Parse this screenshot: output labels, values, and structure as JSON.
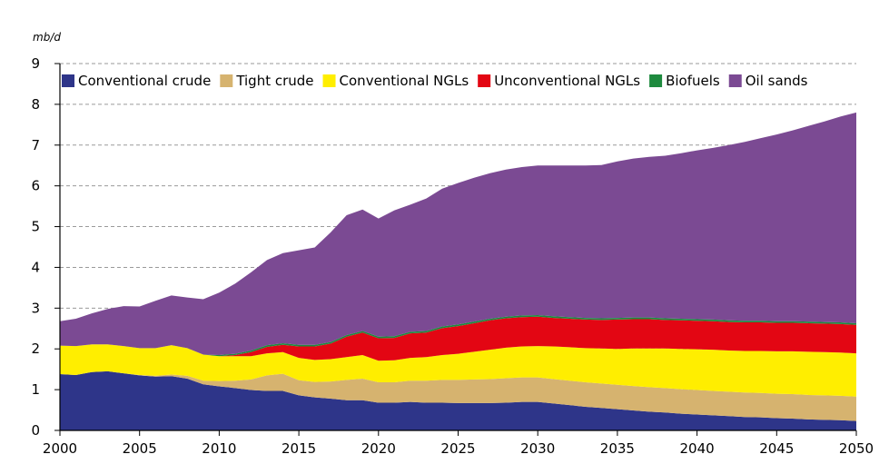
{
  "chart_data": {
    "type": "area",
    "stacked": true,
    "title": "",
    "xlabel": "",
    "ylabel": "mb/d",
    "xlim": [
      2000,
      2050
    ],
    "ylim": [
      0,
      9
    ],
    "x_ticks": [
      "2000",
      "2005",
      "2010",
      "2015",
      "2020",
      "2025",
      "2030",
      "2035",
      "2040",
      "2045",
      "2050"
    ],
    "y_ticks": [
      "0",
      "1",
      "2",
      "3",
      "4",
      "5",
      "6",
      "7",
      "8",
      "9"
    ],
    "grid": "horizontal dashed",
    "legend_position": "top",
    "x": [
      2000,
      2001,
      2002,
      2003,
      2004,
      2005,
      2006,
      2007,
      2008,
      2009,
      2010,
      2011,
      2012,
      2013,
      2014,
      2015,
      2016,
      2017,
      2018,
      2019,
      2020,
      2021,
      2022,
      2023,
      2024,
      2025,
      2026,
      2027,
      2028,
      2029,
      2030,
      2031,
      2032,
      2033,
      2034,
      2035,
      2036,
      2037,
      2038,
      2039,
      2040,
      2041,
      2042,
      2043,
      2044,
      2045,
      2046,
      2047,
      2048,
      2049,
      2050
    ],
    "series": [
      {
        "name": "Conventional crude",
        "color": "#2e3589",
        "values": [
          1.38,
          1.36,
          1.43,
          1.45,
          1.4,
          1.35,
          1.32,
          1.33,
          1.27,
          1.13,
          1.08,
          1.04,
          0.99,
          0.97,
          0.97,
          0.86,
          0.81,
          0.78,
          0.74,
          0.74,
          0.68,
          0.68,
          0.7,
          0.68,
          0.68,
          0.67,
          0.67,
          0.67,
          0.68,
          0.7,
          0.7,
          0.66,
          0.62,
          0.58,
          0.55,
          0.52,
          0.49,
          0.46,
          0.44,
          0.41,
          0.39,
          0.37,
          0.35,
          0.33,
          0.32,
          0.3,
          0.29,
          0.27,
          0.26,
          0.25,
          0.23
        ]
      },
      {
        "name": "Tight crude",
        "color": "#d6b36f",
        "values": [
          0.0,
          0.0,
          0.0,
          0.0,
          0.0,
          0.01,
          0.02,
          0.04,
          0.07,
          0.09,
          0.13,
          0.18,
          0.26,
          0.38,
          0.42,
          0.37,
          0.38,
          0.42,
          0.5,
          0.53,
          0.5,
          0.5,
          0.52,
          0.54,
          0.56,
          0.57,
          0.58,
          0.59,
          0.6,
          0.6,
          0.6,
          0.6,
          0.6,
          0.6,
          0.6,
          0.6,
          0.6,
          0.6,
          0.6,
          0.6,
          0.6,
          0.6,
          0.6,
          0.6,
          0.6,
          0.6,
          0.6,
          0.6,
          0.6,
          0.6,
          0.6
        ]
      },
      {
        "name": "Conventional NGLs",
        "color": "#ffee00",
        "values": [
          0.7,
          0.71,
          0.68,
          0.66,
          0.67,
          0.66,
          0.68,
          0.72,
          0.68,
          0.64,
          0.61,
          0.6,
          0.57,
          0.54,
          0.53,
          0.55,
          0.54,
          0.55,
          0.56,
          0.58,
          0.53,
          0.54,
          0.56,
          0.58,
          0.61,
          0.64,
          0.68,
          0.72,
          0.75,
          0.76,
          0.77,
          0.8,
          0.82,
          0.84,
          0.86,
          0.88,
          0.92,
          0.95,
          0.97,
          0.99,
          1.0,
          1.01,
          1.01,
          1.02,
          1.03,
          1.04,
          1.05,
          1.06,
          1.06,
          1.06,
          1.06
        ]
      },
      {
        "name": "Unconventional NGLs",
        "color": "#e30613",
        "values": [
          0.0,
          0.0,
          0.0,
          0.0,
          0.0,
          0.0,
          0.0,
          0.0,
          0.0,
          0.0,
          0.0,
          0.03,
          0.1,
          0.16,
          0.18,
          0.28,
          0.33,
          0.38,
          0.5,
          0.55,
          0.55,
          0.55,
          0.6,
          0.6,
          0.66,
          0.68,
          0.7,
          0.72,
          0.72,
          0.72,
          0.72,
          0.7,
          0.7,
          0.7,
          0.7,
          0.72,
          0.72,
          0.72,
          0.7,
          0.7,
          0.7,
          0.7,
          0.7,
          0.7,
          0.7,
          0.7,
          0.7,
          0.7,
          0.7,
          0.7,
          0.7
        ]
      },
      {
        "name": "Biofuels",
        "color": "#1e8a3e",
        "values": [
          0.0,
          0.0,
          0.0,
          0.0,
          0.0,
          0.0,
          0.0,
          0.0,
          0.0,
          0.0,
          0.03,
          0.03,
          0.04,
          0.04,
          0.04,
          0.04,
          0.04,
          0.04,
          0.04,
          0.04,
          0.04,
          0.04,
          0.04,
          0.04,
          0.04,
          0.04,
          0.04,
          0.04,
          0.04,
          0.04,
          0.04,
          0.04,
          0.04,
          0.04,
          0.04,
          0.04,
          0.04,
          0.04,
          0.04,
          0.04,
          0.04,
          0.04,
          0.04,
          0.04,
          0.04,
          0.04,
          0.04,
          0.04,
          0.04,
          0.04,
          0.04
        ]
      },
      {
        "name": "Oil sands",
        "color": "#7b4a93",
        "values": [
          0.6,
          0.67,
          0.76,
          0.87,
          0.98,
          1.02,
          1.16,
          1.22,
          1.24,
          1.36,
          1.53,
          1.72,
          1.92,
          2.09,
          2.21,
          2.32,
          2.39,
          2.69,
          2.94,
          2.98,
          2.9,
          3.09,
          3.12,
          3.25,
          3.38,
          3.47,
          3.53,
          3.57,
          3.61,
          3.64,
          3.67,
          3.7,
          3.72,
          3.74,
          3.76,
          3.84,
          3.9,
          3.94,
          3.99,
          4.06,
          4.14,
          4.21,
          4.3,
          4.39,
          4.48,
          4.58,
          4.68,
          4.8,
          4.92,
          5.05,
          5.17
        ]
      }
    ]
  }
}
